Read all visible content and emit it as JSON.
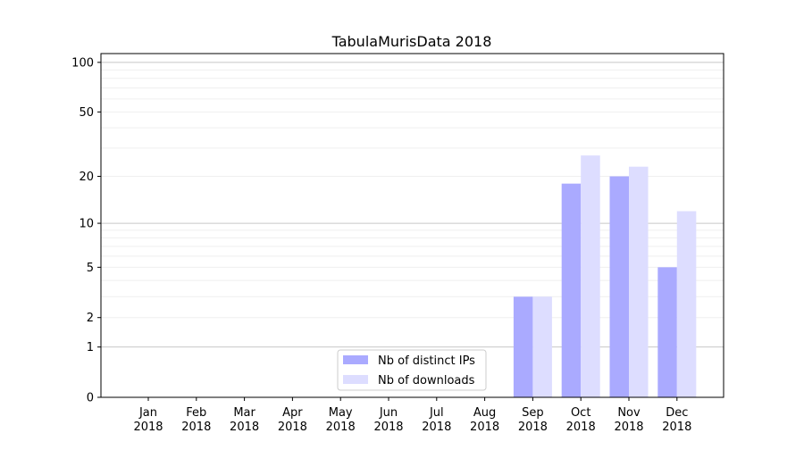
{
  "chart_data": {
    "type": "bar",
    "title": "TabulaMurisData 2018",
    "xlabel": "",
    "ylabel": "",
    "yscale": "log(1+y)",
    "ylim": [
      0,
      113
    ],
    "yticks": [
      0,
      1,
      2,
      5,
      10,
      20,
      50,
      100
    ],
    "grid": true,
    "legend_position": "bottom-center",
    "categories": [
      "Jan\n2018",
      "Feb\n2018",
      "Mar\n2018",
      "Apr\n2018",
      "May\n2018",
      "Jun\n2018",
      "Jul\n2018",
      "Aug\n2018",
      "Sep\n2018",
      "Oct\n2018",
      "Nov\n2018",
      "Dec\n2018"
    ],
    "series": [
      {
        "name": "Nb of distinct IPs",
        "color": "#aaaaff",
        "values": [
          0,
          0,
          0,
          0,
          0,
          0,
          0,
          0,
          3,
          18,
          20,
          5
        ]
      },
      {
        "name": "Nb of downloads",
        "color": "#ddddff",
        "values": [
          0,
          0,
          0,
          0,
          0,
          0,
          0,
          0,
          3,
          27,
          23,
          12
        ]
      }
    ]
  }
}
